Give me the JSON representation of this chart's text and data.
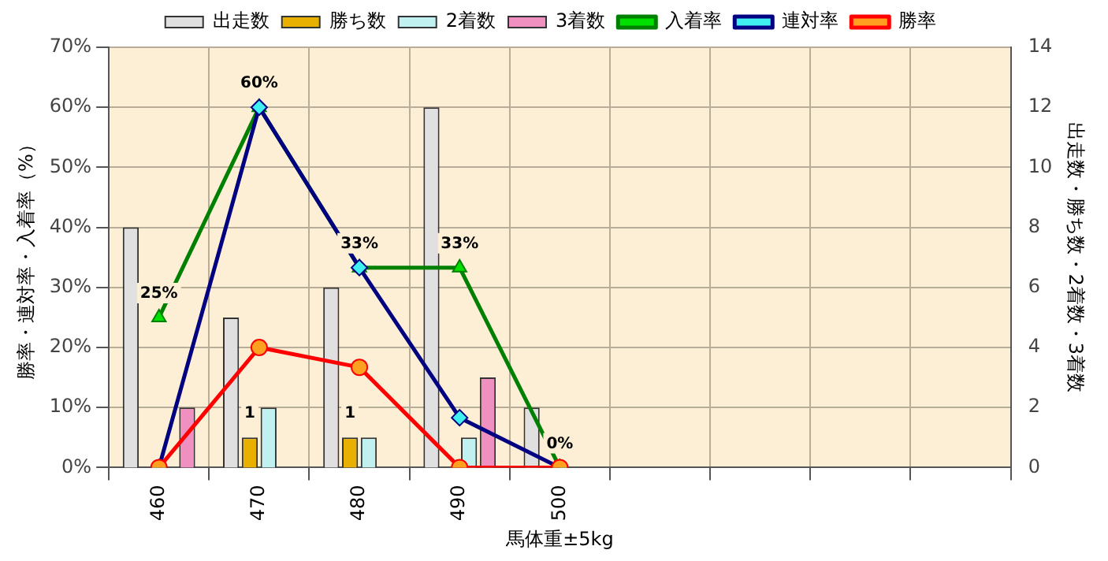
{
  "chart_data": {
    "type": "bar",
    "xlabel": "馬体重±5kg",
    "ylabel": "勝率・連対率・入着率（%）",
    "y2label": "出走数・勝ち数・2着数・3着数",
    "categories": [
      "460",
      "470",
      "480",
      "490",
      "500",
      null,
      null,
      null,
      null
    ],
    "series": [
      {
        "name": "出走数",
        "axis": "y2",
        "color": "#e0e0e0",
        "values": [
          8,
          5,
          6,
          12,
          2,
          null,
          null,
          null,
          null
        ]
      },
      {
        "name": "勝ち数",
        "axis": "y2",
        "color": "#e8b000",
        "values": [
          0,
          1,
          1,
          0,
          0,
          null,
          null,
          null,
          null
        ],
        "value_labels": [
          null,
          "1",
          "1",
          null,
          null,
          null,
          null,
          null,
          null
        ]
      },
      {
        "name": "2着数",
        "axis": "y2",
        "color": "#c0f0f0",
        "values": [
          0,
          2,
          1,
          1,
          0,
          null,
          null,
          null,
          null
        ]
      },
      {
        "name": "3着数",
        "axis": "y2",
        "color": "#f090c0",
        "values": [
          2,
          0,
          0,
          3,
          0,
          null,
          null,
          null,
          null
        ]
      },
      {
        "name": "入着率",
        "type": "line",
        "color": "#008000",
        "marker": "triangle",
        "values": [
          25,
          60,
          33.3,
          33.3,
          0,
          null,
          null,
          null,
          null
        ],
        "value_labels": [
          "25%",
          "60%",
          "33%",
          "33%",
          "0%",
          null,
          null,
          null,
          null
        ]
      },
      {
        "name": "連対率",
        "type": "line",
        "color": "#000080",
        "marker": "diamond",
        "values": [
          0,
          60,
          33.3,
          8.3,
          0,
          null,
          null,
          null,
          null
        ]
      },
      {
        "name": "勝率",
        "type": "line",
        "color": "#ff0000",
        "marker": "circle",
        "values": [
          0,
          20,
          16.7,
          0,
          0,
          null,
          null,
          null,
          null
        ]
      }
    ],
    "ylim": [
      0,
      70
    ],
    "yticks": [
      {
        "value": 0,
        "label": "0%"
      },
      {
        "value": 10,
        "label": "10%"
      },
      {
        "value": 20,
        "label": "20%"
      },
      {
        "value": 30,
        "label": "30%"
      },
      {
        "value": 40,
        "label": "40%"
      },
      {
        "value": 50,
        "label": "50%"
      },
      {
        "value": 60,
        "label": "60%"
      },
      {
        "value": 70,
        "label": "70%"
      }
    ],
    "y2lim": [
      0,
      14
    ],
    "y2ticks": [
      0,
      2,
      4,
      6,
      8,
      10,
      12,
      14
    ],
    "grid": true,
    "legend": "top"
  }
}
